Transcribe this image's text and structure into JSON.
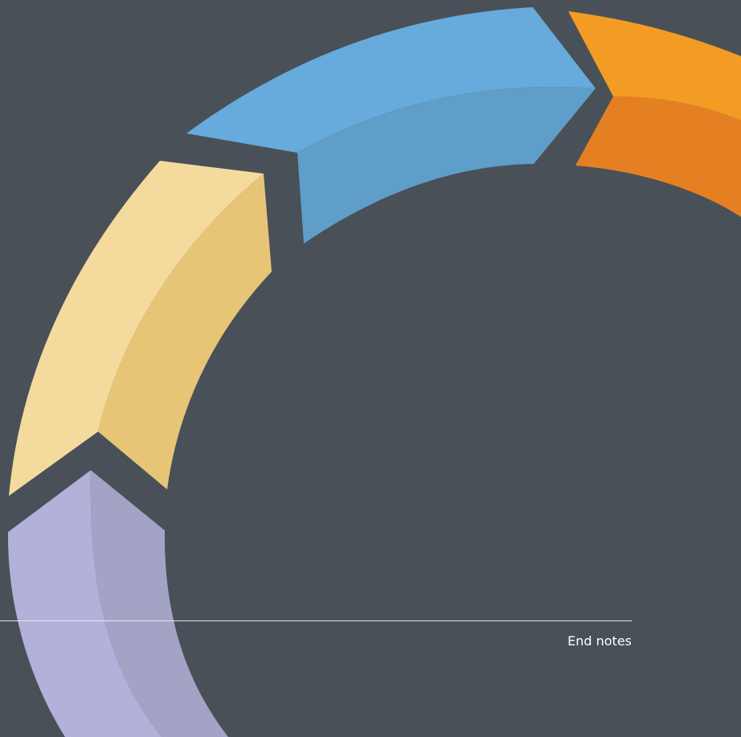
{
  "footer": {
    "section_label": "End notes"
  },
  "graphic": {
    "name": "cycle-ring-arrows",
    "colors": {
      "background": "#4a5058",
      "orange_light": "#f39c24",
      "orange_dark": "#e58022",
      "blue_light": "#66abdb",
      "blue_dark": "#5e9ec9",
      "yellow_light": "#f4db9d",
      "yellow_dark": "#e6c676",
      "lavender_light": "#b1b1da",
      "lavender_dark": "#a3a3c6",
      "rule": "#e6e7e9"
    }
  }
}
